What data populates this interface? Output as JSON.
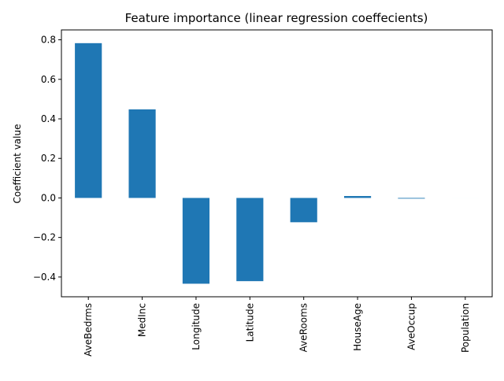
{
  "chart_data": {
    "type": "bar",
    "title": "Feature importance (linear regression coeffecients)",
    "xlabel": "",
    "ylabel": "Coefficient value",
    "categories": [
      "AveBedrms",
      "MedInc",
      "Longitude",
      "Latitude",
      "AveRooms",
      "HouseAge",
      "AveOccup",
      "Population"
    ],
    "values": [
      0.783,
      0.448,
      -0.434,
      -0.421,
      -0.123,
      0.0097,
      -0.0035,
      -1e-05
    ],
    "ylim": [
      -0.5,
      0.85
    ],
    "yticks": [
      -0.4,
      -0.2,
      0.0,
      0.2,
      0.4,
      0.6,
      0.8
    ],
    "ytick_labels": [
      "−0.4",
      "−0.2",
      "0.0",
      "0.2",
      "0.4",
      "0.6",
      "0.8"
    ],
    "bar_color": "#1f77b4",
    "grid": false,
    "legend": false
  }
}
